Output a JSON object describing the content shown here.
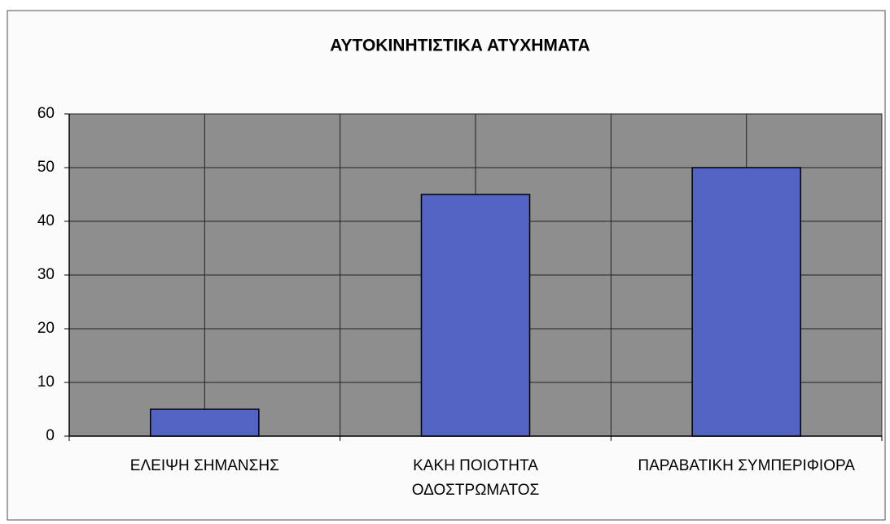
{
  "chart_data": {
    "type": "bar",
    "title": "ΑΥΤΟΚΙΝΗΤΙΣΤΙΚΑ ΑΤΥΧΗΜΑΤΑ",
    "categories": [
      "ΕΛΕΙΨΗ ΣΗΜΑΝΣΗΣ",
      "ΚΑΚΗ ΠΟΙΟΤΗΤΑ ΟΔΟΣΤΡΩΜΑΤΟΣ",
      "ΠΑΡΑΒΑΤΙΚΗ ΣΥΜΠΕΡΙΦΙΟΡΑ"
    ],
    "values": [
      5,
      45,
      50
    ],
    "color": "#5263c4",
    "ylim": [
      0,
      60
    ],
    "yticks": [
      0,
      10,
      20,
      30,
      40,
      50,
      60
    ],
    "grid": true
  }
}
